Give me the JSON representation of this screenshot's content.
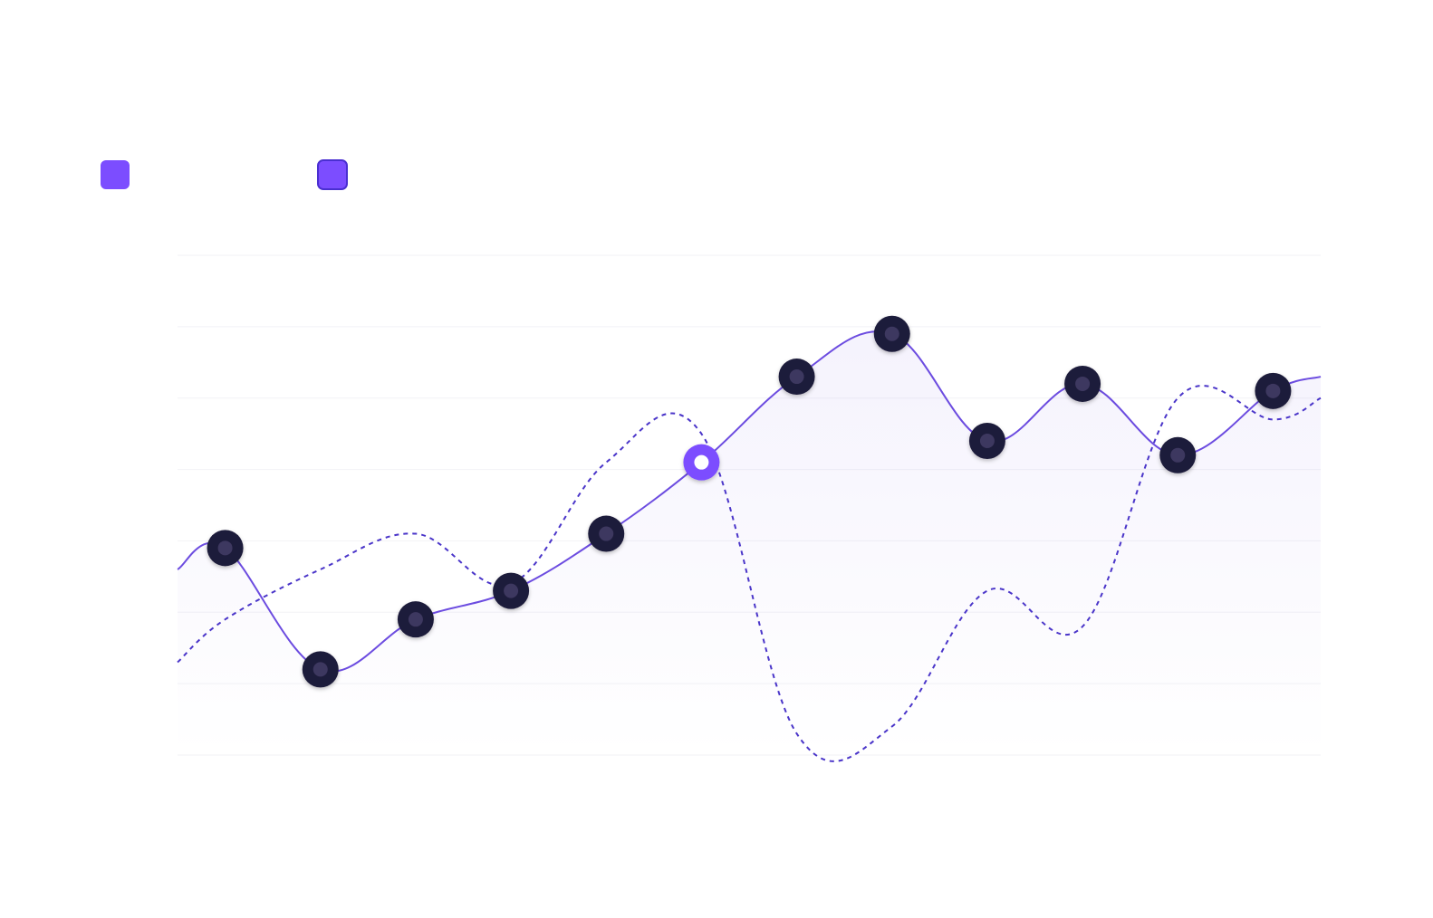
{
  "chart_data": {
    "type": "line",
    "title": "",
    "xlabel": "",
    "ylabel": "",
    "grid": true,
    "legend": "top-left",
    "xlim": [
      0,
      12
    ],
    "ylim": [
      0,
      7
    ],
    "gridlines": [
      0,
      1,
      2,
      3,
      4,
      5,
      6,
      7
    ],
    "x": [
      0,
      0.5,
      1.5,
      2.5,
      3.5,
      4.5,
      5.5,
      6.5,
      7.5,
      8.5,
      9.5,
      10.5,
      11.5,
      12
    ],
    "series": [
      {
        "style": "solid",
        "color": "#6c4ce0",
        "values": [
          2.6,
          2.9,
          1.2,
          1.9,
          2.3,
          3.1,
          4.1,
          5.3,
          5.9,
          4.4,
          5.2,
          4.2,
          5.1,
          5.3
        ],
        "markers": [
          1,
          2,
          3,
          4,
          5,
          6,
          7,
          8,
          9,
          10,
          11,
          12
        ],
        "highlight_index": 6,
        "shaded_area": true
      },
      {
        "style": "dashed",
        "color": "#4a35c9",
        "values": [
          1.3,
          1.9,
          2.6,
          3.1,
          2.4,
          4.1,
          4.5,
          0.3,
          0.4,
          2.3,
          1.8,
          5.0,
          4.7,
          5.0
        ]
      }
    ],
    "legend_swatches": [
      {
        "color": "#7c4dff",
        "style": "filled"
      },
      {
        "color": "#7c4dff",
        "style": "outlined"
      }
    ]
  }
}
